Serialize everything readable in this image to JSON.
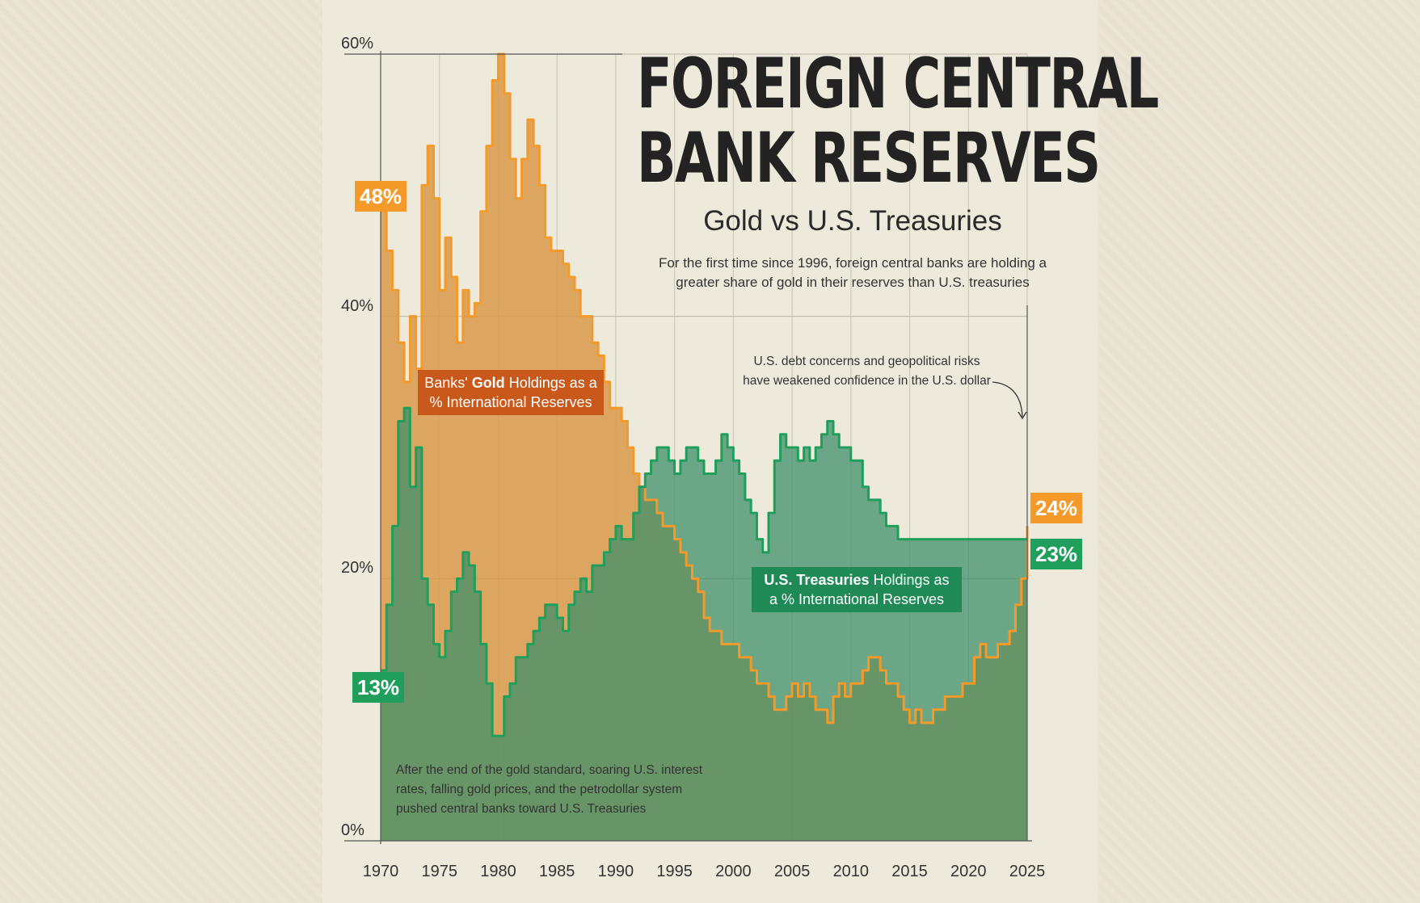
{
  "title_line1": "FOREIGN CENTRAL",
  "title_line2": "BANK RESERVES",
  "subtitle": "Gold vs U.S. Treasuries",
  "description": "For the first time since 1996, foreign central banks are holding a greater share of gold in their reserves than U.S. treasuries",
  "notes": {
    "debt": "U.S. debt concerns and geopolitical risks have weakened confidence in the U.S. dollar",
    "gold_standard": "After the end of the gold standard, soaring U.S. interest rates, falling gold prices, and the petrodollar system pushed central banks toward U.S. Treasuries"
  },
  "series_labels": {
    "gold_pre": "Banks' ",
    "gold_bold": "Gold",
    "gold_post": " Holdings as a % International Reserves",
    "treas_bold": "U.S. Treasuries",
    "treas_post": " Holdings as a % International Reserves"
  },
  "badges": {
    "gold_start": "48%",
    "treas_start": "13%",
    "gold_end": "24%",
    "treas_end": "23%"
  },
  "colors": {
    "gold": "#f39a2a",
    "gold_fill": "#d99a4a",
    "treasury": "#1f9e5c",
    "treasury_fill": "#3f8f6a",
    "gold_label_bg": "#c8591a",
    "treas_label_bg": "#1f8a55",
    "title": "#232323"
  },
  "chart_data": {
    "type": "area",
    "xlabel": "",
    "ylabel": "",
    "xlim": [
      1970,
      2025
    ],
    "ylim": [
      0,
      60
    ],
    "y_ticks": [
      "0%",
      "20%",
      "40%",
      "60%"
    ],
    "y_tick_values": [
      0,
      20,
      40,
      60
    ],
    "x_ticks": [
      "1970",
      "1975",
      "1980",
      "1985",
      "1990",
      "1995",
      "2000",
      "2005",
      "2010",
      "2015",
      "2020",
      "2025"
    ],
    "x_tick_values": [
      1970,
      1975,
      1980,
      1985,
      1990,
      1995,
      2000,
      2005,
      2010,
      2015,
      2020,
      2025
    ],
    "grid": true,
    "series": [
      {
        "name": "Banks' Gold Holdings as a % International Reserves",
        "x": [
          1970,
          1970.5,
          1971,
          1971.5,
          1972,
          1972.5,
          1973,
          1973.5,
          1974,
          1974.5,
          1975,
          1975.5,
          1976,
          1976.5,
          1977,
          1977.5,
          1978,
          1978.5,
          1979,
          1979.5,
          1980,
          1980.5,
          1981,
          1981.5,
          1982,
          1982.5,
          1983,
          1983.5,
          1984,
          1984.5,
          1985,
          1985.5,
          1986,
          1986.5,
          1987,
          1987.5,
          1988,
          1988.5,
          1989,
          1989.5,
          1990,
          1990.5,
          1991,
          1991.5,
          1992,
          1992.5,
          1993,
          1993.5,
          1994,
          1994.5,
          1995,
          1995.5,
          1996,
          1996.5,
          1997,
          1997.5,
          1998,
          1998.5,
          1999,
          1999.5,
          2000,
          2000.5,
          2001,
          2001.5,
          2002,
          2002.5,
          2003,
          2003.5,
          2004,
          2004.5,
          2005,
          2005.5,
          2006,
          2006.5,
          2007,
          2007.5,
          2008,
          2008.5,
          2009,
          2009.5,
          2010,
          2010.5,
          2011,
          2011.5,
          2012,
          2012.5,
          2013,
          2013.5,
          2014,
          2014.5,
          2015,
          2015.5,
          2016,
          2016.5,
          2017,
          2017.5,
          2018,
          2018.5,
          2019,
          2019.5,
          2020,
          2020.5,
          2021,
          2021.5,
          2022,
          2022.5,
          2023,
          2023.5,
          2024,
          2024.5,
          2025
        ],
        "values": [
          48,
          45,
          42,
          38,
          35,
          40,
          36,
          50,
          53,
          49,
          42,
          46,
          43,
          38,
          42,
          40,
          41,
          48,
          53,
          58,
          60,
          57,
          52,
          49,
          52,
          55,
          53,
          50,
          46,
          45,
          45,
          44,
          43,
          42,
          40,
          40,
          38,
          37,
          35,
          33,
          33,
          32,
          30,
          28,
          27,
          26,
          26,
          25,
          24,
          24,
          23,
          22,
          21,
          20,
          19,
          17,
          16,
          16,
          15,
          15,
          15,
          14,
          14,
          13,
          12,
          12,
          11,
          10,
          10,
          11,
          12,
          11,
          12,
          11,
          10,
          10,
          9,
          11,
          12,
          11,
          12,
          12,
          13,
          14,
          14,
          13,
          12,
          12,
          11,
          10,
          9,
          10,
          9,
          9,
          10,
          10,
          11,
          11,
          11,
          12,
          12,
          14,
          15,
          14,
          14,
          15,
          15,
          16,
          18,
          20,
          24
        ],
        "color": "#f39a2a"
      },
      {
        "name": "U.S. Treasuries Holdings as a % International Reserves",
        "x": [
          1970,
          1970.5,
          1971,
          1971.5,
          1972,
          1972.5,
          1973,
          1973.5,
          1974,
          1974.5,
          1975,
          1975.5,
          1976,
          1976.5,
          1977,
          1977.5,
          1978,
          1978.5,
          1979,
          1979.5,
          1980,
          1980.5,
          1981,
          1981.5,
          1982,
          1982.5,
          1983,
          1983.5,
          1984,
          1984.5,
          1985,
          1985.5,
          1986,
          1986.5,
          1987,
          1987.5,
          1988,
          1988.5,
          1989,
          1989.5,
          1990,
          1990.5,
          1991,
          1991.5,
          1992,
          1992.5,
          1993,
          1993.5,
          1994,
          1994.5,
          1995,
          1995.5,
          1996,
          1996.5,
          1997,
          1997.5,
          1998,
          1998.5,
          1999,
          1999.5,
          2000,
          2000.5,
          2001,
          2001.5,
          2002,
          2002.5,
          2003,
          2003.5,
          2004,
          2004.5,
          2005,
          2005.5,
          2006,
          2006.5,
          2007,
          2007.5,
          2008,
          2008.5,
          2009,
          2009.5,
          2010,
          2010.5,
          2011,
          2011.5,
          2012,
          2012.5,
          2013,
          2013.5,
          2014,
          2014.5,
          2015,
          2015.5,
          2016,
          2016.5,
          2017,
          2017.5,
          2018,
          2018.5,
          2019,
          2019.5,
          2020,
          2020.5,
          2021,
          2021.5,
          2022,
          2022.5,
          2023,
          2023.5,
          2024,
          2024.5,
          2025
        ],
        "values": [
          13,
          18,
          24,
          32,
          33,
          27,
          30,
          20,
          18,
          15,
          14,
          16,
          19,
          20,
          22,
          21,
          19,
          15,
          12,
          8,
          8,
          11,
          12,
          14,
          14,
          15,
          16,
          17,
          18,
          18,
          17,
          16,
          18,
          19,
          20,
          19,
          21,
          21,
          22,
          23,
          24,
          23,
          23,
          25,
          27,
          28,
          29,
          30,
          30,
          29,
          28,
          29,
          30,
          30,
          29,
          28,
          28,
          29,
          31,
          30,
          29,
          28,
          26,
          25,
          23,
          22,
          25,
          29,
          31,
          30,
          30,
          29,
          30,
          29,
          30,
          31,
          32,
          31,
          30,
          30,
          29,
          29,
          27,
          26,
          26,
          25,
          24,
          24,
          23,
          23,
          23,
          23,
          23,
          23,
          23,
          23,
          23,
          23,
          23,
          23,
          23,
          23,
          23,
          23,
          23,
          23,
          23,
          23,
          23,
          23,
          23
        ],
        "color": "#1f9e5c"
      }
    ]
  }
}
